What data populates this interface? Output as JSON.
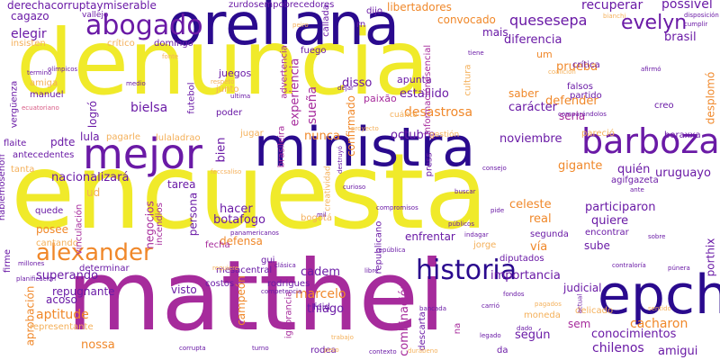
{
  "palette": {
    "yellow": "#f0ea2a",
    "magenta": "#a62b9c",
    "purple": "#6a1aa6",
    "navy": "#2a0a8e",
    "orange": "#f0882a",
    "pink": "#d85a84",
    "light_orange": "#f4b05a",
    "background": "#ffffff"
  },
  "words": [
    {
      "text": "denuncia",
      "color": "yellow"
    },
    {
      "text": "encuesta",
      "color": "yellow"
    },
    {
      "text": "matthei",
      "color": "magenta"
    },
    {
      "text": "orellana",
      "color": "navy"
    },
    {
      "text": "ministra",
      "color": "navy"
    },
    {
      "text": "mejor",
      "color": "purple"
    },
    {
      "text": "abogado",
      "color": "purple"
    },
    {
      "text": "barboza",
      "color": "purple"
    },
    {
      "text": "epch",
      "color": "navy"
    },
    {
      "text": "historia",
      "color": "navy"
    },
    {
      "text": "alexander",
      "color": "orange"
    },
    {
      "text": "evelyn",
      "color": "purple"
    },
    {
      "text": "derechacorruptaymiserable",
      "color": "purple"
    },
    {
      "text": "zurdosempobrecedores",
      "color": "purple"
    },
    {
      "text": "libertadores",
      "color": "orange"
    },
    {
      "text": "quesesepa",
      "color": "purple"
    },
    {
      "text": "recuperar",
      "color": "purple"
    },
    {
      "text": "possível",
      "color": "purple"
    },
    {
      "text": "cagazo",
      "color": "purple"
    },
    {
      "text": "vallejo",
      "color": "purple"
    },
    {
      "text": "convocado",
      "color": "orange"
    },
    {
      "text": "elegir",
      "color": "purple"
    },
    {
      "text": "mais",
      "color": "purple"
    },
    {
      "text": "brasil",
      "color": "purple"
    },
    {
      "text": "diferencia",
      "color": "purple"
    },
    {
      "text": "um",
      "color": "orange"
    },
    {
      "text": "prueba",
      "color": "orange"
    },
    {
      "text": "juegos",
      "color": "purple"
    },
    {
      "text": "experiencia",
      "color": "magenta"
    },
    {
      "text": "disso",
      "color": "purple"
    },
    {
      "text": "sueña",
      "color": "magenta"
    },
    {
      "text": "apunta",
      "color": "purple"
    },
    {
      "text": "saber",
      "color": "orange"
    },
    {
      "text": "defender",
      "color": "orange"
    },
    {
      "text": "estallido",
      "color": "purple"
    },
    {
      "text": "desastrosa",
      "color": "orange"
    },
    {
      "text": "carácter",
      "color": "purple"
    },
    {
      "text": "seria",
      "color": "magenta"
    },
    {
      "text": "logró",
      "color": "purple"
    },
    {
      "text": "bielsa",
      "color": "purple"
    },
    {
      "text": "confirmado",
      "color": "orange"
    },
    {
      "text": "paixão",
      "color": "magenta"
    },
    {
      "text": "octubre",
      "color": "purple"
    },
    {
      "text": "nunca",
      "color": "orange"
    },
    {
      "text": "noviembre",
      "color": "purple"
    },
    {
      "text": "lula",
      "color": "purple"
    },
    {
      "text": "pdte",
      "color": "purple"
    },
    {
      "text": "nacionalizará",
      "color": "purple"
    },
    {
      "text": "bien",
      "color": "purple"
    },
    {
      "text": "gigante",
      "color": "orange"
    },
    {
      "text": "quién",
      "color": "purple"
    },
    {
      "text": "uruguayo",
      "color": "purple"
    },
    {
      "text": "tarea",
      "color": "purple"
    },
    {
      "text": "celeste",
      "color": "orange"
    },
    {
      "text": "hacer",
      "color": "purple"
    },
    {
      "text": "participaron",
      "color": "purple"
    },
    {
      "text": "botafogo",
      "color": "purple"
    },
    {
      "text": "persona",
      "color": "purple"
    },
    {
      "text": "real",
      "color": "orange"
    },
    {
      "text": "quiere",
      "color": "purple"
    },
    {
      "text": "negocios",
      "color": "magenta"
    },
    {
      "text": "defensa",
      "color": "orange"
    },
    {
      "text": "enfrentar",
      "color": "purple"
    },
    {
      "text": "posee",
      "color": "orange"
    },
    {
      "text": "vía",
      "color": "orange"
    },
    {
      "text": "sube",
      "color": "purple"
    },
    {
      "text": "cadem",
      "color": "purple"
    },
    {
      "text": "importancia",
      "color": "purple"
    },
    {
      "text": "porthix",
      "color": "purple"
    },
    {
      "text": "superando",
      "color": "purple"
    },
    {
      "text": "repugnante",
      "color": "purple"
    },
    {
      "text": "marcelo",
      "color": "orange"
    },
    {
      "text": "acoso",
      "color": "purple"
    },
    {
      "text": "visto",
      "color": "purple"
    },
    {
      "text": "thiago",
      "color": "purple"
    },
    {
      "text": "aptitude",
      "color": "orange"
    },
    {
      "text": "nossa",
      "color": "orange"
    },
    {
      "text": "combinación",
      "color": "magenta"
    },
    {
      "text": "según",
      "color": "purple"
    },
    {
      "text": "cacharon",
      "color": "orange"
    },
    {
      "text": "conocimientos",
      "color": "purple"
    },
    {
      "text": "chilenos",
      "color": "purple"
    },
    {
      "text": "amigui",
      "color": "purple"
    },
    {
      "text": "sem",
      "color": "magenta"
    },
    {
      "text": "campeón",
      "color": "orange"
    },
    {
      "text": "aprobación",
      "color": "orange"
    },
    {
      "text": "gestión",
      "color": "light_orange"
    },
    {
      "text": "crítica",
      "color": "purple"
    },
    {
      "text": "partido",
      "color": "purple"
    },
    {
      "text": "falsos",
      "color": "purple"
    },
    {
      "text": "creo",
      "color": "purple"
    },
    {
      "text": "boraxxa",
      "color": "purple"
    },
    {
      "text": "pagarle",
      "color": "light_orange"
    },
    {
      "text": "lulaladrao",
      "color": "light_orange"
    },
    {
      "text": "jugar",
      "color": "light_orange"
    },
    {
      "text": "brasileira",
      "color": "magenta"
    },
    {
      "text": "futebol",
      "color": "purple"
    },
    {
      "text": "insisten",
      "color": "light_orange"
    },
    {
      "text": "manuel",
      "color": "purple"
    },
    {
      "text": "amiga",
      "color": "light_orange"
    },
    {
      "text": "vergüenza",
      "color": "purple"
    },
    {
      "text": "flaite",
      "color": "purple"
    },
    {
      "text": "antecedentes",
      "color": "purple"
    },
    {
      "text": "tanta",
      "color": "light_orange"
    },
    {
      "text": "hablemosenoff",
      "color": "purple"
    },
    {
      "text": "quede",
      "color": "purple"
    },
    {
      "text": "ud",
      "color": "light_orange"
    },
    {
      "text": "cantando",
      "color": "light_orange"
    },
    {
      "text": "firme",
      "color": "purple"
    },
    {
      "text": "determinar",
      "color": "purple"
    },
    {
      "text": "representante",
      "color": "light_orange"
    },
    {
      "text": "millones",
      "color": "purple"
    },
    {
      "text": "incendios",
      "color": "magenta"
    },
    {
      "text": "vinculación",
      "color": "magenta"
    },
    {
      "text": "costos",
      "color": "purple"
    },
    {
      "text": "mesacentral",
      "color": "purple"
    },
    {
      "text": "rodrigues",
      "color": "purple"
    },
    {
      "text": "gui",
      "color": "purple"
    },
    {
      "text": "feid",
      "color": "purple"
    },
    {
      "text": "rodea",
      "color": "purple"
    },
    {
      "text": "descarta",
      "color": "purple"
    },
    {
      "text": "ignorancia",
      "color": "magenta"
    },
    {
      "text": "republicano",
      "color": "purple"
    },
    {
      "text": "diputados",
      "color": "purple"
    },
    {
      "text": "jorge",
      "color": "light_orange"
    },
    {
      "text": "segunda",
      "color": "purple"
    },
    {
      "text": "encontrar",
      "color": "purple"
    },
    {
      "text": "judicial",
      "color": "purple"
    },
    {
      "text": "moneda",
      "color": "light_orange"
    },
    {
      "text": "press",
      "color": "purple"
    },
    {
      "text": "bogotá",
      "color": "light_orange"
    },
    {
      "text": "fecha",
      "color": "magenta"
    },
    {
      "text": "poder",
      "color": "purple"
    },
    {
      "text": "junto",
      "color": "light_orange"
    },
    {
      "text": "fuego",
      "color": "purple"
    },
    {
      "text": "callada",
      "color": "purple"
    },
    {
      "text": "rn",
      "color": "purple"
    },
    {
      "text": "dijo",
      "color": "purple"
    },
    {
      "text": "crítico",
      "color": "light_orange"
    },
    {
      "text": "domingo",
      "color": "purple"
    },
    {
      "text": "informaciónesencial",
      "color": "magenta"
    },
    {
      "text": "cultura",
      "color": "light_orange"
    },
    {
      "text": "advertencia",
      "color": "magenta"
    },
    {
      "text": "desplomó",
      "color": "orange"
    },
    {
      "text": "bianchi",
      "color": "light_orange"
    },
    {
      "text": "cumplir",
      "color": "purple"
    },
    {
      "text": "disposición",
      "color": "purple"
    },
    {
      "text": "cuánto",
      "color": "light_orange"
    },
    {
      "text": "agifgazeta",
      "color": "purple"
    },
    {
      "text": "pareció",
      "color": "light_orange"
    },
    {
      "text": "creatividad",
      "color": "light_orange"
    },
    {
      "text": "compromisos",
      "color": "purple"
    },
    {
      "text": "indagar",
      "color": "purple"
    },
    {
      "text": "contraloría",
      "color": "purple"
    },
    {
      "text": "bancada",
      "color": "purple"
    },
    {
      "text": "carrió",
      "color": "purple"
    },
    {
      "text": "ultima",
      "color": "purple"
    },
    {
      "text": "pagados",
      "color": "light_orange"
    },
    {
      "text": "legado",
      "color": "purple"
    },
    {
      "text": "durabeno",
      "color": "light_orange"
    },
    {
      "text": "fondos",
      "color": "purple"
    },
    {
      "text": "planificación",
      "color": "purple"
    },
    {
      "text": "competencia",
      "color": "purple"
    },
    {
      "text": "trabajo",
      "color": "light_orange"
    },
    {
      "text": "delicado",
      "color": "light_orange"
    },
    {
      "text": "públicos",
      "color": "purple"
    },
    {
      "text": "peiro",
      "color": "light_orange"
    },
    {
      "text": "da",
      "color": "purple"
    },
    {
      "text": "na",
      "color": "magenta"
    },
    {
      "text": "mil",
      "color": "purple"
    },
    {
      "text": "libre",
      "color": "purple"
    },
    {
      "text": "corrupta",
      "color": "purple"
    },
    {
      "text": "pide",
      "color": "purple"
    },
    {
      "text": "olímpicos",
      "color": "purple"
    },
    {
      "text": "afirmó",
      "color": "purple"
    },
    {
      "text": "coalición",
      "color": "light_orange"
    },
    {
      "text": "comparándolos",
      "color": "purple"
    },
    {
      "text": "dejar",
      "color": "purple"
    },
    {
      "text": "destruyó",
      "color": "purple"
    },
    {
      "text": "curioso",
      "color": "purple"
    },
    {
      "text": "terminó",
      "color": "purple"
    },
    {
      "text": "panamericanos",
      "color": "purple"
    },
    {
      "text": "república",
      "color": "purple"
    },
    {
      "text": "requiere",
      "color": "light_orange"
    },
    {
      "text": "actual",
      "color": "purple"
    },
    {
      "text": "púnera",
      "color": "purple"
    },
    {
      "text": "peso",
      "color": "light_orange"
    },
    {
      "text": "sentido",
      "color": "light_orange"
    },
    {
      "text": "dado",
      "color": "purple"
    },
    {
      "text": "clásica",
      "color": "purple"
    },
    {
      "text": "ecuatoriano",
      "color": "pink"
    },
    {
      "text": "respeto",
      "color": "light_orange"
    },
    {
      "text": "feccsaliso",
      "color": "light_orange"
    },
    {
      "text": "proyecto",
      "color": "light_orange"
    },
    {
      "text": "consejo",
      "color": "purple"
    },
    {
      "text": "sobre",
      "color": "purple"
    },
    {
      "text": "turno",
      "color": "purple"
    },
    {
      "text": "contexto",
      "color": "purple"
    },
    {
      "text": "fonte",
      "color": "light_orange"
    },
    {
      "text": "ante",
      "color": "purple"
    },
    {
      "text": "buscar",
      "color": "purple"
    },
    {
      "text": "medio",
      "color": "purple"
    },
    {
      "text": "tiene",
      "color": "purple"
    }
  ]
}
